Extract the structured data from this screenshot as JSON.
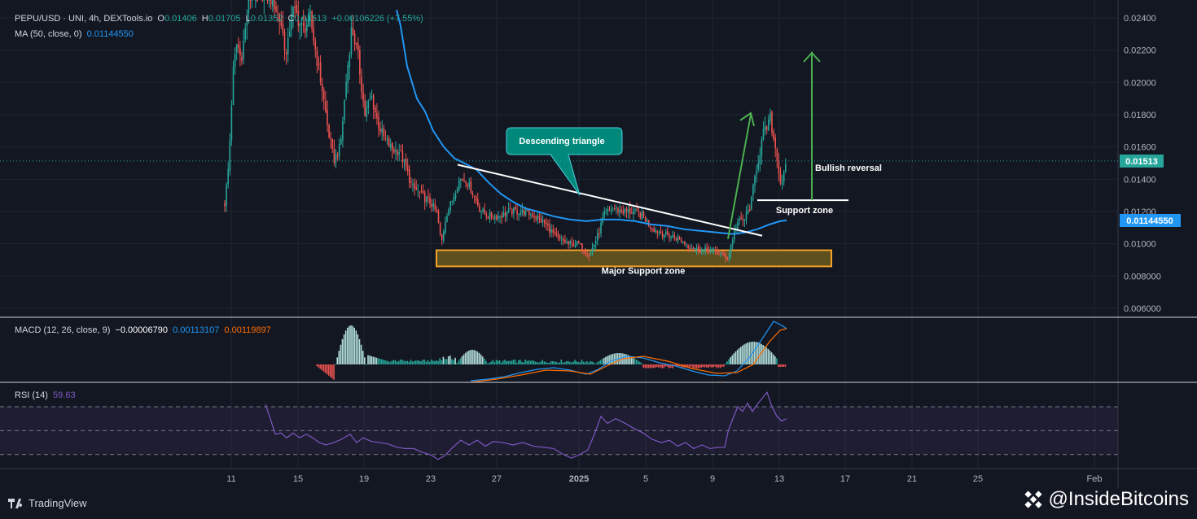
{
  "header": {
    "symbol": "PEPU/USD · UNI, 4h, DEXTools.io",
    "o_label": "O",
    "o_value": "0.01406",
    "h_label": "H",
    "h_value": "0.01705",
    "l_label": "L",
    "l_value": "0.01352",
    "c_label": "C",
    "c_value": "0.01513",
    "change": "+0.00106226 (+7.55%)",
    "ma_label": "MA (50, close, 0)",
    "ma_value": "0.01144550"
  },
  "macd_header": {
    "label": "MACD (12, 26, close, 9)",
    "hist": "−0.00006790",
    "macd": "0.00113107",
    "signal": "0.00119897"
  },
  "rsi_header": {
    "label": "RSI (14)",
    "value": "59.63"
  },
  "branding": {
    "tradingview": "TradingView",
    "watermark": "@InsideBitcoins"
  },
  "colors": {
    "bg": "#131722",
    "up": "#26a69a",
    "down": "#ef5350",
    "ma": "#2196f3",
    "signal": "#ff6d00",
    "rsi": "#7e57c2",
    "support": "#f7a128",
    "arrow": "#4caf50"
  },
  "chart_data": [
    {
      "type": "candlestick",
      "title": "PEPU/USD · UNI, 4h, DEXTools.io",
      "x_ticks": [
        "11",
        "15",
        "19",
        "23",
        "27",
        "2025",
        "5",
        "9",
        "13",
        "17",
        "21",
        "25",
        "Feb"
      ],
      "y_ticks": [
        "0.02400",
        "0.02200",
        "0.02000",
        "0.01800",
        "0.01600",
        "0.01400",
        "0.01200",
        "0.01000",
        "0.008000",
        "0.006000"
      ],
      "ylim": [
        0.0055,
        0.0245
      ],
      "price_labels": {
        "last": "0.01513",
        "ma": "0.01144550"
      },
      "ma_series": {
        "name": "MA (50, close, 0)",
        "value": 0.0114455
      },
      "annotations": {
        "descending_triangle": "Descending triangle",
        "bullish_reversal": "Bullish reversal",
        "support_zone": "Support zone",
        "major_support_zone": "Major Support zone"
      },
      "support_zone_level": 0.0127,
      "major_support_range": [
        0.0086,
        0.0096
      ]
    },
    {
      "type": "bar",
      "title": "MACD (12, 26, close, 9)",
      "labels": {
        "hist": "−0.00006790",
        "macd": "0.00113107",
        "signal": "0.00119897"
      }
    },
    {
      "type": "line",
      "title": "RSI (14)",
      "y_ticks": [
        "80.00",
        "40.00"
      ],
      "ylim": [
        21,
        89
      ],
      "value": "59.63"
    }
  ]
}
